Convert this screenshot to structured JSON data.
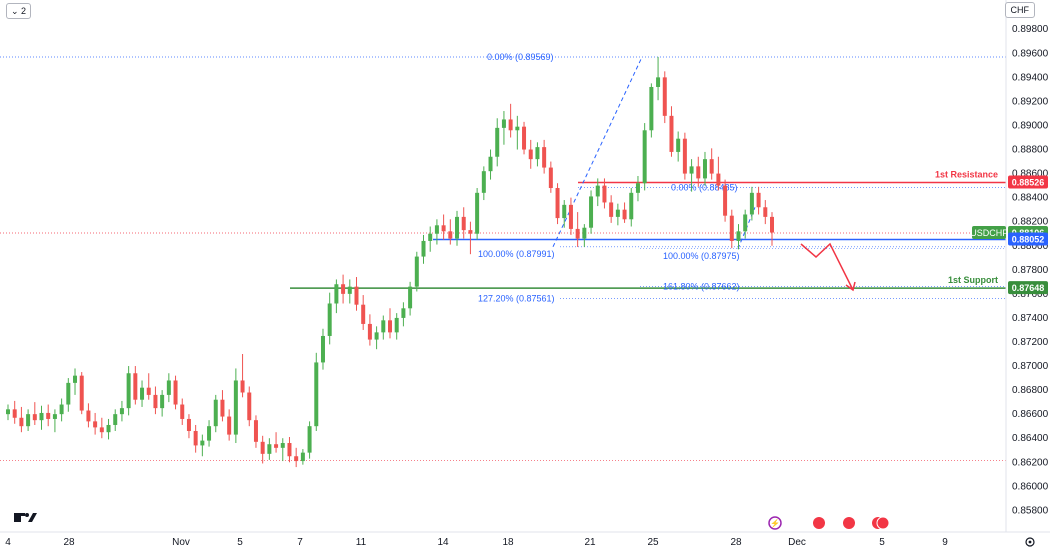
{
  "toolbar": {
    "indicator_toggle": "⌄ 2",
    "currency": "CHF"
  },
  "colors": {
    "up": "#26a69a",
    "up_body": "#4caf50",
    "down": "#ef5350",
    "resistance": "#f23645",
    "support": "#388e3c",
    "fib": "#2962ff",
    "level_blue": "#2962ff",
    "price": "#43a047"
  },
  "chart_data": {
    "type": "candlestick",
    "symbol": "USDCHF",
    "ylim": [
      0.8572,
      0.8996
    ],
    "y_ticks": [
      "0.89800",
      "0.89600",
      "0.89400",
      "0.89200",
      "0.89000",
      "0.88800",
      "0.88600",
      "0.88400",
      "0.88200",
      "0.88000",
      "0.87800",
      "0.87600",
      "0.87400",
      "0.87200",
      "0.87000",
      "0.86800",
      "0.86600",
      "0.86400",
      "0.86200",
      "0.86000",
      "0.85800"
    ],
    "x_ticks": [
      "4",
      "28",
      "Nov",
      "5",
      "7",
      "11",
      "14",
      "18",
      "21",
      "25",
      "28",
      "Dec",
      "5",
      "9"
    ],
    "levels": [
      {
        "name": "resistance",
        "label": "1st Resistance",
        "price_label": "0.88526",
        "value": 0.88526
      },
      {
        "name": "support",
        "label": "1st Support",
        "price_label": "0.87648",
        "value": 0.87648
      },
      {
        "name": "blue",
        "label": "",
        "price_label": "0.88052",
        "value": 0.88052
      },
      {
        "name": "current",
        "label": "USDCHF",
        "price_label": "0.88106",
        "value": 0.88106
      }
    ],
    "fib_labels": [
      {
        "text": "0.00% (0.89569)"
      },
      {
        "text": "100.00% (0.87991)"
      },
      {
        "text": "127.20% (0.87561)"
      },
      {
        "text": "0.00% (0.88485)"
      },
      {
        "text": "100.00% (0.87975)"
      },
      {
        "text": "161.80% (0.87662)"
      }
    ],
    "candles": [
      [
        0.866,
        0.8668,
        0.8655,
        0.8664
      ],
      [
        0.8664,
        0.8671,
        0.8652,
        0.8657
      ],
      [
        0.8657,
        0.8666,
        0.8645,
        0.865
      ],
      [
        0.865,
        0.8664,
        0.8646,
        0.866
      ],
      [
        0.866,
        0.867,
        0.8651,
        0.8655
      ],
      [
        0.8655,
        0.8667,
        0.8647,
        0.8661
      ],
      [
        0.8661,
        0.8668,
        0.865,
        0.8656
      ],
      [
        0.8656,
        0.8664,
        0.8645,
        0.866
      ],
      [
        0.866,
        0.8673,
        0.8654,
        0.8668
      ],
      [
        0.8668,
        0.869,
        0.8662,
        0.8686
      ],
      [
        0.8686,
        0.8698,
        0.8676,
        0.8692
      ],
      [
        0.8692,
        0.8695,
        0.866,
        0.8663
      ],
      [
        0.8663,
        0.8669,
        0.8649,
        0.8654
      ],
      [
        0.8654,
        0.8661,
        0.8643,
        0.8649
      ],
      [
        0.8649,
        0.8657,
        0.864,
        0.8645
      ],
      [
        0.8645,
        0.8656,
        0.8639,
        0.8651
      ],
      [
        0.8651,
        0.8664,
        0.8646,
        0.866
      ],
      [
        0.866,
        0.8671,
        0.8654,
        0.8665
      ],
      [
        0.8665,
        0.87,
        0.8659,
        0.8694
      ],
      [
        0.8694,
        0.87,
        0.8668,
        0.8672
      ],
      [
        0.8672,
        0.8688,
        0.8666,
        0.8682
      ],
      [
        0.8682,
        0.8694,
        0.8672,
        0.8676
      ],
      [
        0.8676,
        0.8683,
        0.866,
        0.8665
      ],
      [
        0.8665,
        0.868,
        0.8658,
        0.8676
      ],
      [
        0.8676,
        0.8694,
        0.867,
        0.8688
      ],
      [
        0.8688,
        0.8692,
        0.8664,
        0.8668
      ],
      [
        0.8668,
        0.8673,
        0.8651,
        0.8656
      ],
      [
        0.8656,
        0.866,
        0.864,
        0.8646
      ],
      [
        0.8646,
        0.8651,
        0.8628,
        0.8634
      ],
      [
        0.8634,
        0.8643,
        0.8625,
        0.8638
      ],
      [
        0.8638,
        0.8655,
        0.8633,
        0.865
      ],
      [
        0.865,
        0.8676,
        0.8645,
        0.8672
      ],
      [
        0.8672,
        0.868,
        0.8654,
        0.8658
      ],
      [
        0.8658,
        0.8664,
        0.8638,
        0.8643
      ],
      [
        0.8643,
        0.8698,
        0.8636,
        0.8688
      ],
      [
        0.8688,
        0.871,
        0.8674,
        0.8678
      ],
      [
        0.8678,
        0.8683,
        0.865,
        0.8655
      ],
      [
        0.8655,
        0.8659,
        0.8632,
        0.8637
      ],
      [
        0.8637,
        0.8642,
        0.8619,
        0.8627
      ],
      [
        0.8627,
        0.864,
        0.8622,
        0.8635
      ],
      [
        0.8635,
        0.8645,
        0.8628,
        0.8632
      ],
      [
        0.8632,
        0.864,
        0.8621,
        0.8636
      ],
      [
        0.8636,
        0.8641,
        0.862,
        0.8625
      ],
      [
        0.8625,
        0.8632,
        0.8616,
        0.8621
      ],
      [
        0.8621,
        0.8631,
        0.8618,
        0.8628
      ],
      [
        0.8628,
        0.8654,
        0.8623,
        0.865
      ],
      [
        0.865,
        0.8711,
        0.8646,
        0.8703
      ],
      [
        0.8703,
        0.8731,
        0.8697,
        0.8725
      ],
      [
        0.8725,
        0.8761,
        0.8718,
        0.8752
      ],
      [
        0.8752,
        0.8772,
        0.8744,
        0.8768
      ],
      [
        0.8768,
        0.8776,
        0.8752,
        0.876
      ],
      [
        0.876,
        0.8772,
        0.8752,
        0.8766
      ],
      [
        0.8766,
        0.8774,
        0.8746,
        0.8751
      ],
      [
        0.8751,
        0.8759,
        0.873,
        0.8735
      ],
      [
        0.8735,
        0.8743,
        0.8717,
        0.8722
      ],
      [
        0.8722,
        0.8733,
        0.8714,
        0.8728
      ],
      [
        0.8728,
        0.8742,
        0.8722,
        0.8738
      ],
      [
        0.8738,
        0.8748,
        0.8723,
        0.8728
      ],
      [
        0.8728,
        0.8744,
        0.8722,
        0.874
      ],
      [
        0.874,
        0.8753,
        0.8733,
        0.8748
      ],
      [
        0.8748,
        0.877,
        0.8742,
        0.8766
      ],
      [
        0.8766,
        0.8795,
        0.8762,
        0.8791
      ],
      [
        0.8791,
        0.8809,
        0.8785,
        0.8804
      ],
      [
        0.8804,
        0.8816,
        0.8795,
        0.881
      ],
      [
        0.881,
        0.8822,
        0.8801,
        0.8817
      ],
      [
        0.8817,
        0.8826,
        0.8805,
        0.8812
      ],
      [
        0.8812,
        0.8822,
        0.8801,
        0.8806
      ],
      [
        0.8806,
        0.8829,
        0.88,
        0.8824
      ],
      [
        0.8824,
        0.8832,
        0.8806,
        0.8813
      ],
      [
        0.8813,
        0.882,
        0.8793,
        0.881
      ],
      [
        0.881,
        0.8848,
        0.8805,
        0.8844
      ],
      [
        0.8844,
        0.8866,
        0.8838,
        0.8862
      ],
      [
        0.8862,
        0.888,
        0.8855,
        0.8874
      ],
      [
        0.8874,
        0.8906,
        0.8866,
        0.8898
      ],
      [
        0.8898,
        0.8912,
        0.8884,
        0.8905
      ],
      [
        0.8905,
        0.8918,
        0.889,
        0.8896
      ],
      [
        0.8896,
        0.8908,
        0.888,
        0.8899
      ],
      [
        0.8899,
        0.8903,
        0.8876,
        0.888
      ],
      [
        0.888,
        0.8888,
        0.8864,
        0.8872
      ],
      [
        0.8872,
        0.8886,
        0.8866,
        0.8882
      ],
      [
        0.8882,
        0.8888,
        0.886,
        0.8865
      ],
      [
        0.8865,
        0.887,
        0.8844,
        0.8848
      ],
      [
        0.8848,
        0.8852,
        0.8818,
        0.8823
      ],
      [
        0.8823,
        0.8838,
        0.8815,
        0.8834
      ],
      [
        0.8834,
        0.884,
        0.8809,
        0.8814
      ],
      [
        0.8814,
        0.8828,
        0.8799,
        0.8806
      ],
      [
        0.8806,
        0.8818,
        0.8799,
        0.8815
      ],
      [
        0.8815,
        0.8846,
        0.881,
        0.8841
      ],
      [
        0.8841,
        0.8856,
        0.8833,
        0.885
      ],
      [
        0.885,
        0.8856,
        0.8831,
        0.8836
      ],
      [
        0.8836,
        0.8842,
        0.8819,
        0.8824
      ],
      [
        0.8824,
        0.8835,
        0.8817,
        0.883
      ],
      [
        0.883,
        0.8836,
        0.8819,
        0.8822
      ],
      [
        0.8822,
        0.8848,
        0.8816,
        0.8844
      ],
      [
        0.8844,
        0.8858,
        0.8837,
        0.8852
      ],
      [
        0.8852,
        0.8902,
        0.8846,
        0.8896
      ],
      [
        0.8896,
        0.8935,
        0.889,
        0.8932
      ],
      [
        0.8932,
        0.8957,
        0.8921,
        0.894
      ],
      [
        0.894,
        0.8945,
        0.8902,
        0.8908
      ],
      [
        0.8908,
        0.8916,
        0.8874,
        0.8878
      ],
      [
        0.8878,
        0.8895,
        0.887,
        0.8889
      ],
      [
        0.8889,
        0.8894,
        0.8855,
        0.886
      ],
      [
        0.886,
        0.8872,
        0.8845,
        0.8866
      ],
      [
        0.8866,
        0.8874,
        0.8849,
        0.8856
      ],
      [
        0.8856,
        0.8878,
        0.885,
        0.8872
      ],
      [
        0.8872,
        0.8881,
        0.8855,
        0.886
      ],
      [
        0.886,
        0.8874,
        0.8846,
        0.885
      ],
      [
        0.885,
        0.8855,
        0.882,
        0.8825
      ],
      [
        0.8825,
        0.883,
        0.8798,
        0.8804
      ],
      [
        0.8804,
        0.8818,
        0.8797,
        0.8812
      ],
      [
        0.8812,
        0.883,
        0.8806,
        0.8826
      ],
      [
        0.8826,
        0.8849,
        0.8821,
        0.8844
      ],
      [
        0.8844,
        0.8849,
        0.8826,
        0.8832
      ],
      [
        0.8832,
        0.8838,
        0.8818,
        0.8824
      ],
      [
        0.8824,
        0.8828,
        0.88,
        0.8811
      ]
    ]
  },
  "footer": {
    "logo": "TV"
  }
}
